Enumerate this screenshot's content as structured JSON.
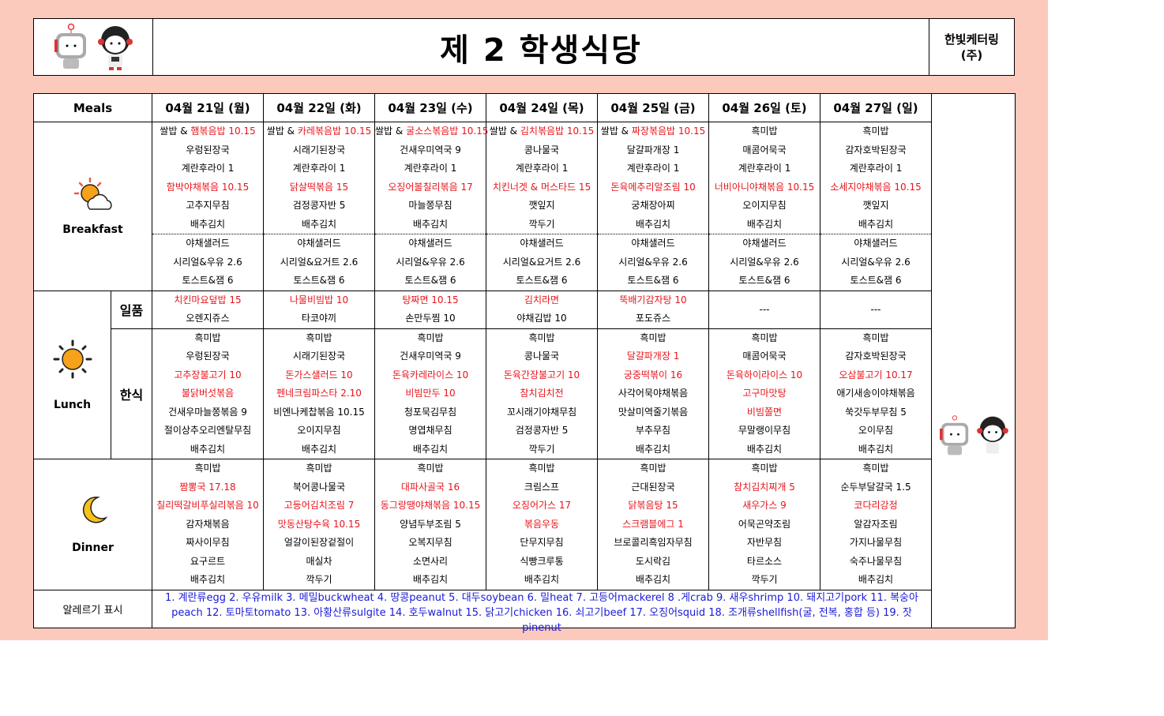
{
  "header": {
    "title": "제 2 학생식당",
    "company_line1": "한빛케터링",
    "company_line2": "(주)"
  },
  "labels": {
    "meals": "Meals",
    "breakfast": "Breakfast",
    "lunch": "Lunch",
    "dinner": "Dinner",
    "ilpum": "일품",
    "hansik": "한식",
    "allergy": "알레르기 표시"
  },
  "days": [
    {
      "date": "04월 21일 (월)",
      "breakfast": [
        {
          "prefix": "쌀밥 & ",
          "text": "햄볶음밥 10.15",
          "red": true
        },
        {
          "text": "우렁된장국"
        },
        {
          "text": "계란후라이 1"
        },
        {
          "text": "함박야채볶음 10.15",
          "red": true
        },
        {
          "text": "고추지무침"
        },
        {
          "text": "배추김치"
        },
        {
          "text": "야채샐러드"
        },
        {
          "text": "시리얼&우유 2.6"
        },
        {
          "text": "토스트&잼 6"
        }
      ],
      "ilpum": [
        {
          "text": "치킨마요덮밥 15",
          "red": true
        },
        {
          "text": "오렌지쥬스"
        }
      ],
      "hansik": [
        {
          "text": "흑미밥"
        },
        {
          "text": "우렁된장국"
        },
        {
          "text": "고추장불고기 10",
          "red": true
        },
        {
          "text": "불닭버섯볶음",
          "red": true
        },
        {
          "text": "건새우마늘쫑볶음 9"
        },
        {
          "text": "절이상추오리엔탈무침"
        },
        {
          "text": "배추김치"
        }
      ],
      "dinner": [
        {
          "text": "흑미밥"
        },
        {
          "text": "짬뽕국 17.18",
          "red": true
        },
        {
          "text": "칠리떡갈비푸실리볶음 10",
          "red": true
        },
        {
          "text": "감자채볶음"
        },
        {
          "text": "짜사이무침"
        },
        {
          "text": "요구르트"
        },
        {
          "text": "배추김치"
        }
      ]
    },
    {
      "date": "04월 22일 (화)",
      "breakfast": [
        {
          "prefix": "쌀밥 & ",
          "text": "카레볶음밥 10.15",
          "red": true
        },
        {
          "text": "시래기된장국"
        },
        {
          "text": "계란후라이 1"
        },
        {
          "text": "닭살떡볶음 15",
          "red": true
        },
        {
          "text": "검정콩자반 5"
        },
        {
          "text": "배추김치"
        },
        {
          "text": "야채샐러드"
        },
        {
          "text": "시리얼&요거트 2.6"
        },
        {
          "text": "토스트&잼 6"
        }
      ],
      "ilpum": [
        {
          "text": "나물비빔밥 10",
          "red": true
        },
        {
          "text": "타코야끼"
        }
      ],
      "hansik": [
        {
          "text": "흑미밥"
        },
        {
          "text": "시래기된장국"
        },
        {
          "text": "돈가스샐러드 10",
          "red": true
        },
        {
          "text": "펜네크림파스타 2.10",
          "red": true
        },
        {
          "text": "비엔나케찹볶음 10.15"
        },
        {
          "text": "오이지무침"
        },
        {
          "text": "배추김치"
        }
      ],
      "dinner": [
        {
          "text": "흑미밥"
        },
        {
          "text": "북어콩나물국"
        },
        {
          "text": "고등어김치조림 7",
          "red": true
        },
        {
          "text": "맛동산탕수육 10.15",
          "red": true
        },
        {
          "text": "얼갈이된장겉절이"
        },
        {
          "text": "매실차"
        },
        {
          "text": "깍두기"
        }
      ]
    },
    {
      "date": "04월 23일 (수)",
      "breakfast": [
        {
          "prefix": "쌀밥 & ",
          "text": "굴소스볶음밥 10.15",
          "red": true
        },
        {
          "text": "건새우미역국 9"
        },
        {
          "text": "계란후라이 1"
        },
        {
          "text": "오징어볼칠리볶음 17",
          "red": true
        },
        {
          "text": "마늘쫑무침"
        },
        {
          "text": "배추김치"
        },
        {
          "text": "야채샐러드"
        },
        {
          "text": "시리얼&우유 2.6"
        },
        {
          "text": "토스트&잼 6"
        }
      ],
      "ilpum": [
        {
          "text": "탕짜면 10.15",
          "red": true
        },
        {
          "text": "손만두찜 10"
        }
      ],
      "hansik": [
        {
          "text": "흑미밥"
        },
        {
          "text": "건새우미역국 9"
        },
        {
          "text": "돈육카레라이스 10",
          "red": true
        },
        {
          "text": "비빔만두 10",
          "red": true
        },
        {
          "text": "청포묵김무침"
        },
        {
          "text": "명엽채무침"
        },
        {
          "text": "배추김치"
        }
      ],
      "dinner": [
        {
          "text": "흑미밥"
        },
        {
          "text": "대파사골국 16",
          "red": true
        },
        {
          "text": "동그랑땡야채볶음 10.15",
          "red": true
        },
        {
          "text": "양념두부조림 5"
        },
        {
          "text": "오복지무침"
        },
        {
          "text": "소면사리"
        },
        {
          "text": "배추김치"
        }
      ]
    },
    {
      "date": "04월 24일 (목)",
      "breakfast": [
        {
          "prefix": "쌀밥 & ",
          "text": "김치볶음밥 10.15",
          "red": true
        },
        {
          "text": "콩나물국"
        },
        {
          "text": "계란후라이 1"
        },
        {
          "text": "치킨너겟 & 머스타드 15",
          "red": true
        },
        {
          "text": "깻잎지"
        },
        {
          "text": "깍두기"
        },
        {
          "text": "야채샐러드"
        },
        {
          "text": "시리얼&요거트 2.6"
        },
        {
          "text": "토스트&잼 6"
        }
      ],
      "ilpum": [
        {
          "text": "김치라면",
          "red": true
        },
        {
          "text": "야채김밥 10"
        }
      ],
      "hansik": [
        {
          "text": "흑미밥"
        },
        {
          "text": "콩나물국"
        },
        {
          "text": "돈육간장불고기 10",
          "red": true
        },
        {
          "text": "참치김치전",
          "red": true
        },
        {
          "text": "꼬시래기야채무침"
        },
        {
          "text": "검정콩자반 5"
        },
        {
          "text": "깍두기"
        }
      ],
      "dinner": [
        {
          "text": "흑미밥"
        },
        {
          "text": "크림스프"
        },
        {
          "text": "오징어가스 17",
          "red": true
        },
        {
          "text": "볶음우동",
          "red": true
        },
        {
          "text": "단무지무침"
        },
        {
          "text": "식빵크루통"
        },
        {
          "text": "배추김치"
        }
      ]
    },
    {
      "date": "04월 25일 (금)",
      "breakfast": [
        {
          "prefix": "쌀밥 & ",
          "text": "짜장볶음밥 10.15",
          "red": true
        },
        {
          "text": "달걀파개장 1"
        },
        {
          "text": "계란후라이 1"
        },
        {
          "text": "돈육메추리알조림 10",
          "red": true
        },
        {
          "text": "궁채장아찌"
        },
        {
          "text": "배추김치"
        },
        {
          "text": "야채샐러드"
        },
        {
          "text": "시리얼&우유 2.6"
        },
        {
          "text": "토스트&잼 6"
        }
      ],
      "ilpum": [
        {
          "text": "뚝배기감자탕 10",
          "red": true
        },
        {
          "text": "포도쥬스"
        }
      ],
      "hansik": [
        {
          "text": "흑미밥"
        },
        {
          "text": "달걀파개장 1",
          "red": true
        },
        {
          "text": "궁중떡볶이 16",
          "red": true
        },
        {
          "text": "사각어묵야채볶음"
        },
        {
          "text": "맛살미역줄기볶음"
        },
        {
          "text": "부추무침"
        },
        {
          "text": "배추김치"
        }
      ],
      "dinner": [
        {
          "text": "흑미밥"
        },
        {
          "text": "근대된장국"
        },
        {
          "text": "닭볶음탕 15",
          "red": true
        },
        {
          "text": "스크램블에그 1",
          "red": true
        },
        {
          "text": "브로콜리흑임자무침"
        },
        {
          "text": "도시락김"
        },
        {
          "text": "배추김치"
        }
      ]
    },
    {
      "date": "04월 26일 (토)",
      "breakfast": [
        {
          "text": "흑미밥"
        },
        {
          "text": "매콤어묵국"
        },
        {
          "text": "계란후라이 1"
        },
        {
          "text": "너비아니야채볶음 10.15",
          "red": true
        },
        {
          "text": "오이지무침"
        },
        {
          "text": "배추김치"
        },
        {
          "text": "야채샐러드"
        },
        {
          "text": "시리얼&우유 2.6"
        },
        {
          "text": "토스트&잼 6"
        }
      ],
      "ilpum": [
        {
          "text": "---"
        }
      ],
      "hansik": [
        {
          "text": "흑미밥"
        },
        {
          "text": "매콤어묵국"
        },
        {
          "text": "돈육하이라이스 10",
          "red": true
        },
        {
          "text": "고구마맛탕",
          "red": true
        },
        {
          "text": "비빔쫄면",
          "red": true
        },
        {
          "text": "무말랭이무침"
        },
        {
          "text": "배추김치"
        }
      ],
      "dinner": [
        {
          "text": "흑미밥"
        },
        {
          "text": "참치김치찌개 5",
          "red": true
        },
        {
          "text": "새우가스 9",
          "red": true
        },
        {
          "text": "어묵곤약조림"
        },
        {
          "text": "자반무침"
        },
        {
          "text": "타르소스"
        },
        {
          "text": "깍두기"
        }
      ]
    },
    {
      "date": "04월 27일 (일)",
      "breakfast": [
        {
          "text": "흑미밥"
        },
        {
          "text": "감자호박된장국"
        },
        {
          "text": "계란후라이 1"
        },
        {
          "text": "소세지야채볶음 10.15",
          "red": true
        },
        {
          "text": "깻잎지"
        },
        {
          "text": "배추김치"
        },
        {
          "text": "야채샐러드"
        },
        {
          "text": "시리얼&우유 2.6"
        },
        {
          "text": "토스트&잼 6"
        }
      ],
      "ilpum": [
        {
          "text": "---"
        }
      ],
      "hansik": [
        {
          "text": "흑미밥"
        },
        {
          "text": "감자호박된장국"
        },
        {
          "text": "오삼불고기 10.17",
          "red": true
        },
        {
          "text": "애기새송이야채볶음"
        },
        {
          "text": "쑥갓두부무침 5"
        },
        {
          "text": "오이무침"
        },
        {
          "text": "배추김치"
        }
      ],
      "dinner": [
        {
          "text": "흑미밥"
        },
        {
          "text": "순두부달걀국 1.5"
        },
        {
          "text": "코다리강정",
          "red": true
        },
        {
          "text": "알감자조림"
        },
        {
          "text": "가지나물무침"
        },
        {
          "text": "숙주나물무침"
        },
        {
          "text": "배추김치"
        }
      ]
    }
  ],
  "allergy_text": "1. 계란류egg 2. 우유milk 3. 메밀buckwheat 4. 땅콩peanut 5. 대두soybean 6. 밀heat 7. 고등어mackerel 8 .게crab 9. 새우shrimp 10. 돼지고기pork 11. 복숭아peach 12. 토마토tomato 13. 아황산류sulgite 14. 호두walnut 15. 닭고기chicken 16. 쇠고기beef 17. 오징어squid 18. 조개류shellfish(굴, 전복, 홍합 등) 19. 잣pinenut",
  "colors": {
    "background": "#fcc9bd",
    "highlight": "#e8141b",
    "allergy": "#1a1ad8"
  }
}
